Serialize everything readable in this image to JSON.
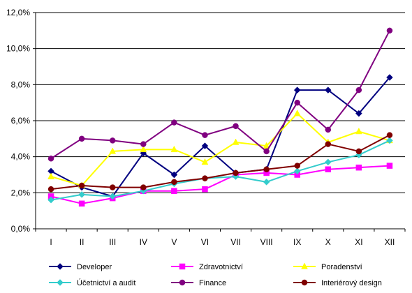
{
  "chart_data": {
    "type": "line",
    "categories": [
      "I",
      "II",
      "III",
      "IV",
      "V",
      "VI",
      "VII",
      "VIII",
      "IX",
      "X",
      "XI",
      "XII"
    ],
    "ylim": [
      0,
      12
    ],
    "ytick_values": [
      0,
      2,
      4,
      6,
      8,
      10,
      12
    ],
    "ytick_labels": [
      "0,0%",
      "2,0%",
      "4,0%",
      "6,0%",
      "8,0%",
      "10,0%",
      "12,0%"
    ],
    "grid": "horizontal",
    "legend_position": "bottom",
    "series": [
      {
        "name": "Developer",
        "color": "#000080",
        "marker": "diamond",
        "values": [
          3.2,
          2.3,
          1.8,
          4.2,
          3.0,
          4.6,
          3.1,
          3.3,
          7.7,
          7.7,
          6.4,
          8.4
        ]
      },
      {
        "name": "Zdravotnictví",
        "color": "#FF00FF",
        "marker": "square",
        "values": [
          1.8,
          1.4,
          1.7,
          2.1,
          2.1,
          2.2,
          3.0,
          3.1,
          3.0,
          3.3,
          3.4,
          3.5
        ]
      },
      {
        "name": "Poradenství",
        "color": "#FFFF00",
        "marker": "triangle",
        "values": [
          2.9,
          2.4,
          4.3,
          4.4,
          4.4,
          3.7,
          4.8,
          4.6,
          6.4,
          4.8,
          5.4,
          4.9
        ]
      },
      {
        "name": "Účetnictví a audit",
        "color": "#33CCCC",
        "marker": "diamond",
        "values": [
          1.6,
          1.9,
          1.8,
          2.1,
          2.5,
          2.8,
          2.9,
          2.6,
          3.2,
          3.7,
          4.1,
          4.9
        ]
      },
      {
        "name": "Finance",
        "color": "#800080",
        "marker": "circle",
        "values": [
          3.9,
          5.0,
          4.9,
          4.7,
          5.9,
          5.2,
          5.7,
          4.3,
          7.0,
          5.5,
          7.7,
          11.0
        ]
      },
      {
        "name": "Interiérový design",
        "color": "#800000",
        "marker": "circle",
        "values": [
          2.2,
          2.4,
          2.3,
          2.3,
          2.6,
          2.8,
          3.1,
          3.3,
          3.5,
          4.7,
          4.3,
          5.2
        ]
      }
    ]
  }
}
